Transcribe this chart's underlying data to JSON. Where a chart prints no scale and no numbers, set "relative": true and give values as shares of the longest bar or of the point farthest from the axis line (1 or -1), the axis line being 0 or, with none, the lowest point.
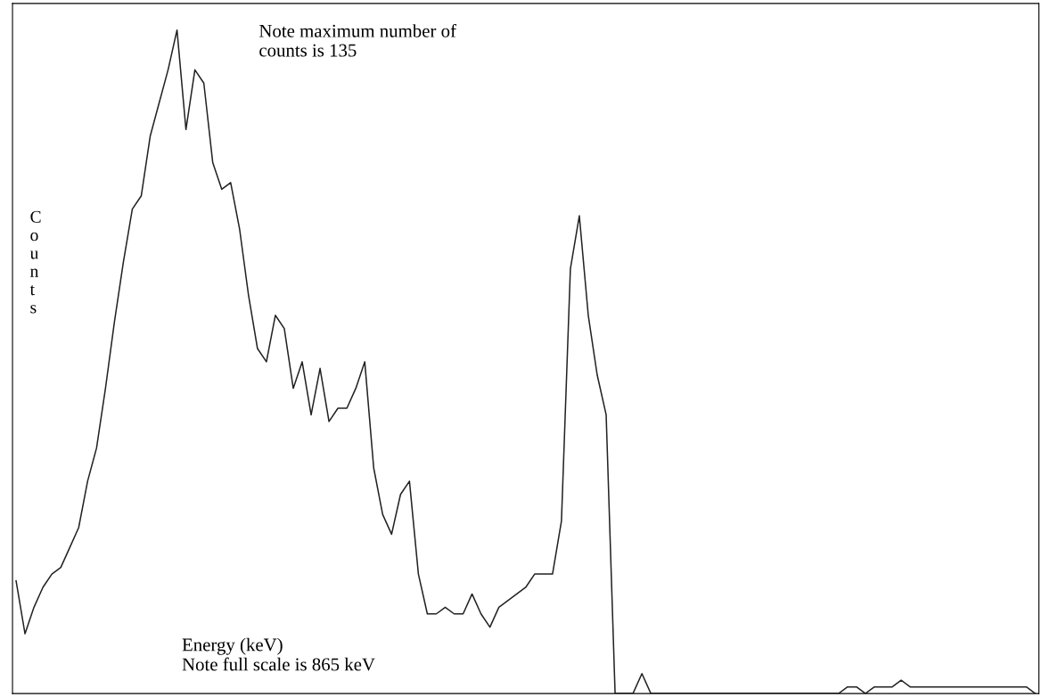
{
  "chart_data": {
    "type": "line",
    "relative": true,
    "color": "#222222",
    "grid": false,
    "xlabel": "Energy (keV)",
    "ylabel": "Counts",
    "annotations": [
      "Note maximum number of\ncounts is 135",
      "Note full scale is 865 keV"
    ],
    "categories": [
      null,
      null,
      null,
      null,
      null,
      null,
      null,
      null,
      null,
      null,
      null,
      null,
      null,
      null,
      null,
      null,
      null,
      null,
      null,
      null,
      null,
      null,
      null,
      null,
      null,
      null,
      null,
      null,
      null,
      null,
      null,
      null,
      null,
      null,
      null,
      null,
      null,
      null,
      null,
      null,
      null,
      null,
      null,
      null,
      null,
      null,
      null,
      null,
      null,
      null,
      null,
      null,
      null,
      null,
      null,
      null,
      null,
      null,
      null,
      null,
      null,
      null,
      null,
      null,
      null,
      null,
      null,
      null,
      null,
      null,
      null,
      null,
      null,
      null,
      null,
      null,
      null,
      null,
      null,
      null,
      null,
      null,
      null,
      null,
      null,
      null,
      null,
      null,
      null,
      null,
      null,
      null,
      null,
      null,
      null,
      null,
      null,
      null,
      null,
      null,
      null,
      null,
      null,
      null,
      null,
      null,
      null,
      null,
      null,
      null,
      null,
      null,
      null,
      null,
      null
    ],
    "values": [
      0.17,
      0.09,
      0.13,
      0.16,
      0.18,
      0.19,
      0.22,
      0.25,
      0.32,
      0.37,
      0.46,
      0.56,
      0.65,
      0.73,
      0.75,
      0.84,
      0.89,
      0.94,
      1.0,
      0.85,
      0.94,
      0.92,
      0.8,
      0.76,
      0.77,
      0.7,
      0.6,
      0.52,
      0.5,
      0.57,
      0.55,
      0.46,
      0.5,
      0.42,
      0.49,
      0.41,
      0.43,
      0.43,
      0.46,
      0.5,
      0.34,
      0.27,
      0.24,
      0.3,
      0.32,
      0.18,
      0.12,
      0.12,
      0.13,
      0.12,
      0.12,
      0.15,
      0.12,
      0.1,
      0.13,
      0.14,
      0.15,
      0.16,
      0.18,
      0.18,
      0.18,
      0.26,
      0.64,
      0.72,
      0.57,
      0.48,
      0.42,
      0,
      0,
      0,
      0.03,
      0,
      0,
      0,
      0,
      0,
      0,
      0,
      0,
      0,
      0,
      0,
      0,
      0,
      0,
      0,
      0,
      0,
      0,
      0,
      0,
      0,
      0,
      0.01,
      0.01,
      0,
      0.01,
      0.01,
      0.01,
      0.02,
      0.01,
      0.01,
      0.01,
      0.01,
      0.01,
      0.01,
      0.01,
      0.01,
      0.01,
      0.01,
      0.01,
      0.01,
      0.01,
      0.01,
      0
    ]
  }
}
